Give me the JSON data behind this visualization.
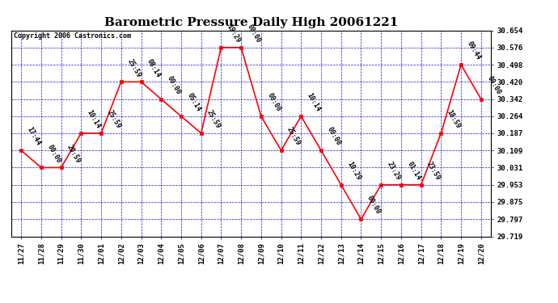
{
  "title": "Barometric Pressure Daily High 20061221",
  "copyright": "Copyright 2006 Castronics.com",
  "background_color": "#ffffff",
  "plot_bg_color": "#ffffff",
  "line_color": "#ff0000",
  "marker_color": "#ff0000",
  "grid_color": "#0000cc",
  "text_color": "#000000",
  "x_labels": [
    "11/27",
    "11/28",
    "11/29",
    "11/30",
    "12/01",
    "12/02",
    "12/03",
    "12/04",
    "12/05",
    "12/06",
    "12/07",
    "12/08",
    "12/09",
    "12/10",
    "12/11",
    "12/12",
    "12/13",
    "12/14",
    "12/15",
    "12/16",
    "12/17",
    "12/18",
    "12/19",
    "12/20"
  ],
  "y_values": [
    30.109,
    30.031,
    30.031,
    30.187,
    30.187,
    30.42,
    30.42,
    30.342,
    30.264,
    30.187,
    30.576,
    30.576,
    30.264,
    30.109,
    30.264,
    30.109,
    29.953,
    29.797,
    29.953,
    29.953,
    29.953,
    30.187,
    30.498,
    30.342
  ],
  "point_labels": [
    "17:44",
    "00:00",
    "20:59",
    "10:14",
    "25:59",
    "25:59",
    "08:14",
    "00:00",
    "05:14",
    "25:59",
    "19:29",
    "00:00",
    "00:00",
    "25:59",
    "10:14",
    "00:00",
    "10:29",
    "00:00",
    "23:29",
    "01:14",
    "23:59",
    "18:59",
    "09:44",
    "00:00"
  ],
  "ylim_min": 29.719,
  "ylim_max": 30.654,
  "yticks": [
    29.719,
    29.797,
    29.875,
    29.953,
    30.031,
    30.109,
    30.187,
    30.264,
    30.342,
    30.42,
    30.498,
    30.576,
    30.654
  ],
  "title_fontsize": 11,
  "label_fontsize": 6,
  "axis_fontsize": 6.5,
  "copyright_fontsize": 6
}
